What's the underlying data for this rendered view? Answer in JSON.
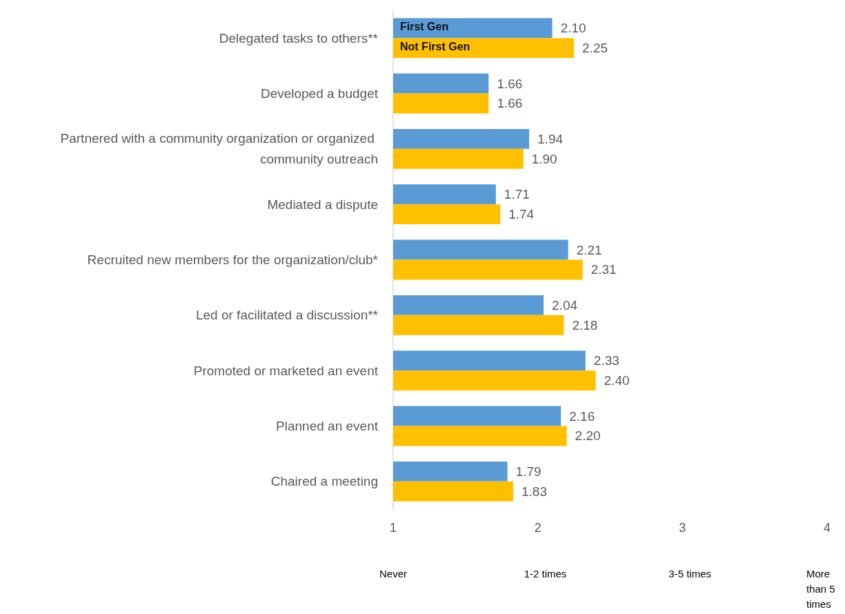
{
  "chart_data": {
    "type": "bar",
    "orientation": "horizontal",
    "categories": [
      "Delegated tasks to others**",
      "Developed a budget",
      "Partnered with a community organization or organized community outreach",
      "Mediated a dispute",
      "Recruited new members for the organization/club*",
      "Led or facilitated a discussion**",
      "Promoted or marketed an event",
      "Planned an event",
      "Chaired a meeting"
    ],
    "series": [
      {
        "name": "First Gen",
        "color": "#5b9bd5",
        "values": [
          2.1,
          1.66,
          1.94,
          1.71,
          2.21,
          2.04,
          2.33,
          2.16,
          1.79
        ],
        "value_labels": [
          "2.10",
          "1.66",
          "1.94",
          "1.71",
          "2.21",
          "2.04",
          "2.33",
          "2.16",
          "1.79"
        ]
      },
      {
        "name": "Not First Gen",
        "color": "#ffc000",
        "values": [
          2.25,
          1.66,
          1.9,
          1.74,
          2.31,
          2.18,
          2.4,
          2.2,
          1.83
        ],
        "value_labels": [
          "2.25",
          "1.66",
          "1.90",
          "1.74",
          "2.31",
          "2.18",
          "2.40",
          "2.20",
          "1.83"
        ]
      }
    ],
    "xlim": [
      1,
      4
    ],
    "xticks": [
      1,
      2,
      3,
      4
    ],
    "grid": false,
    "legend": false,
    "annotations": [
      "Never",
      "1-2 times",
      "3-5 times",
      "More than 5 times"
    ]
  }
}
